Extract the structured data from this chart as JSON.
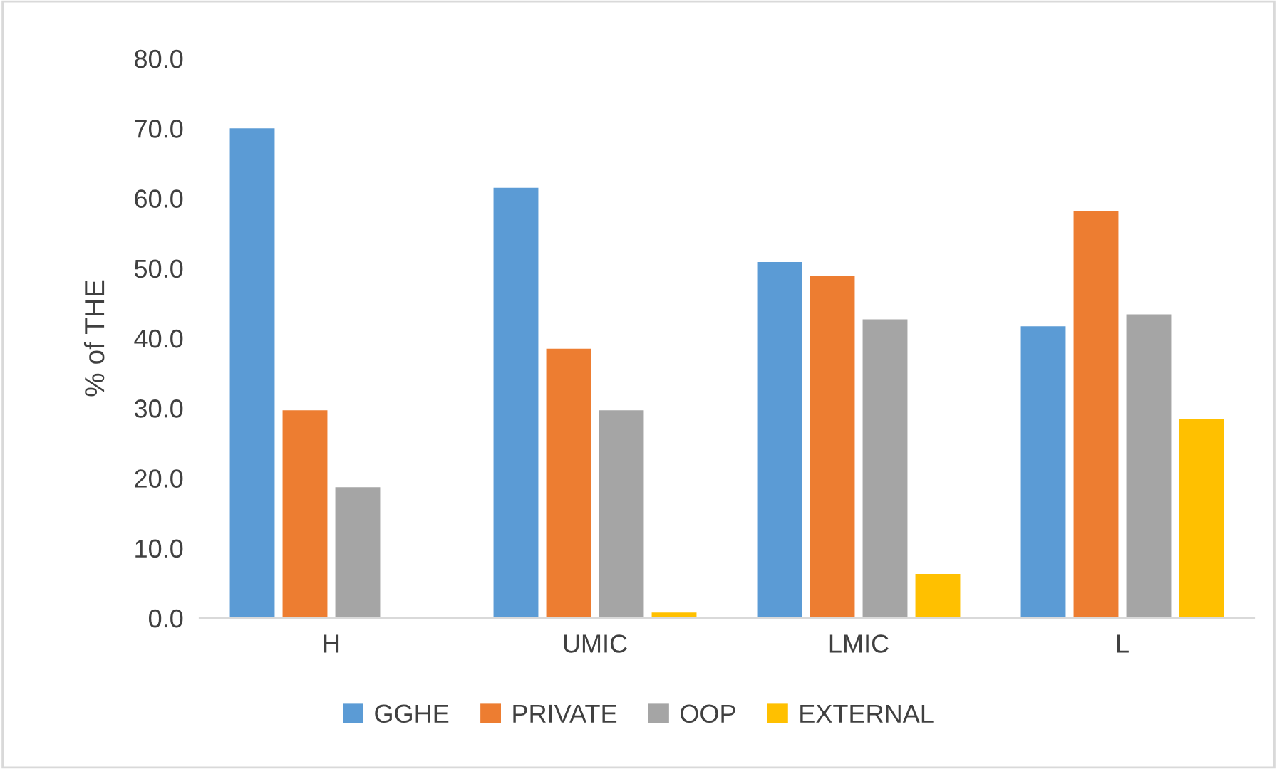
{
  "chart_data": {
    "type": "bar",
    "ylabel": "% of THE",
    "categories": [
      "H",
      "UMIC",
      "LMIC",
      "L"
    ],
    "series": [
      {
        "name": "GGHE",
        "color": "#5b9bd5",
        "values": [
          70.0,
          61.5,
          50.9,
          41.7
        ]
      },
      {
        "name": "PRIVATE",
        "color": "#ed7d31",
        "values": [
          29.7,
          38.5,
          48.9,
          58.2
        ]
      },
      {
        "name": "OOP",
        "color": "#a5a5a5",
        "values": [
          18.7,
          29.7,
          42.7,
          43.4
        ]
      },
      {
        "name": "EXTERNAL",
        "color": "#ffc000",
        "values": [
          null,
          0.8,
          6.3,
          28.5
        ]
      }
    ],
    "ylim": [
      0,
      80
    ],
    "yticks": [
      {
        "value": 0,
        "label": "0.0"
      },
      {
        "value": 10,
        "label": "10.0"
      },
      {
        "value": 20,
        "label": "20.0"
      },
      {
        "value": 30,
        "label": "30.0"
      },
      {
        "value": 40,
        "label": "40.0"
      },
      {
        "value": 50,
        "label": "50.0"
      },
      {
        "value": 60,
        "label": "60.0"
      },
      {
        "value": 70,
        "label": "70.0"
      },
      {
        "value": 80,
        "label": "80.0"
      }
    ],
    "grid": false,
    "legend": "bottom"
  }
}
